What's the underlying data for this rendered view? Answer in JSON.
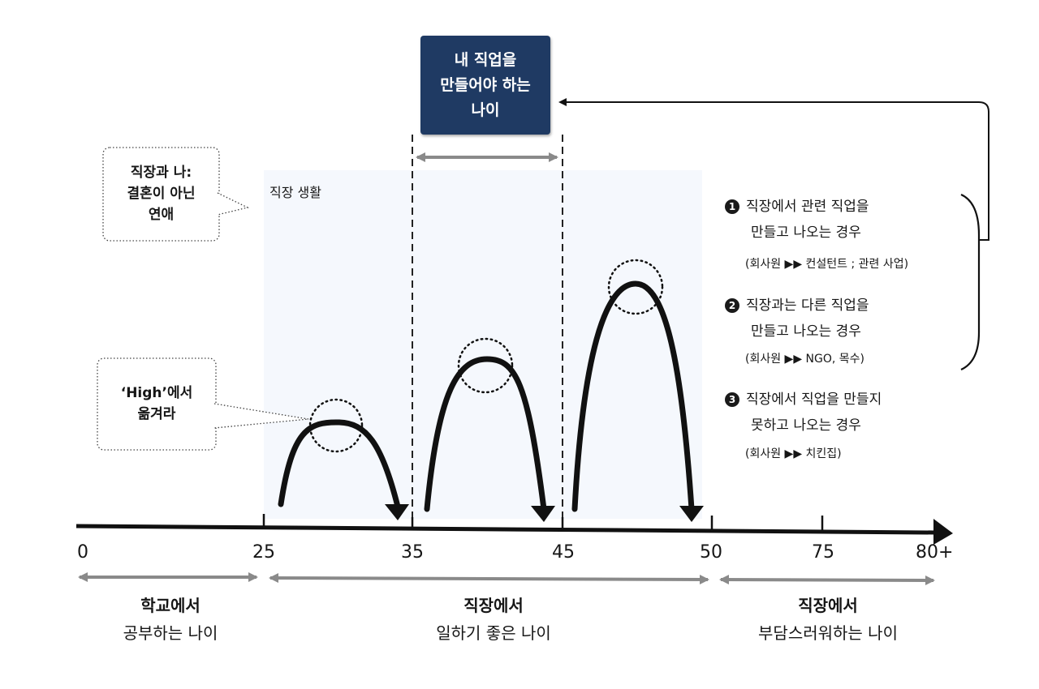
{
  "top_box": {
    "lines": [
      "내 직업을",
      "만들어야 하는",
      "나이"
    ]
  },
  "bubble_relationship": {
    "lines": [
      "직장과 나:",
      "결혼이 아닌",
      "연애"
    ]
  },
  "bubble_high": {
    "lines": [
      "‘High’에서",
      "옮겨라"
    ]
  },
  "work_life_label": "직장 생활",
  "axis": {
    "ticks": [
      {
        "label": "0"
      },
      {
        "label": "25"
      },
      {
        "label": "35"
      },
      {
        "label": "45"
      },
      {
        "label": "50"
      },
      {
        "label": "75"
      },
      {
        "label": "80+"
      }
    ]
  },
  "ranges": [
    {
      "line1": "학교에서",
      "line2": "공부하는 나이"
    },
    {
      "line1": "직장에서",
      "line2": "일하기 좋은 나이"
    },
    {
      "line1": "직장에서",
      "line2": "부담스러워하는 나이"
    }
  ],
  "options": [
    {
      "number": "1",
      "title": "직장에서 관련 직업을",
      "title2": "만들고 나오는 경우",
      "example": "(회사원 ▶▶ 컨설턴트 ; 관련 사업)"
    },
    {
      "number": "2",
      "title": "직장과는 다른 직업을",
      "title2": "만들고 나오는 경우",
      "example": "(회사원 ▶▶ NGO, 목수)"
    },
    {
      "number": "3",
      "title": "직장에서 직업을 만들지",
      "title2": "못하고 나오는 경우",
      "example": "(회사원 ▶▶ 치킨집)"
    }
  ]
}
